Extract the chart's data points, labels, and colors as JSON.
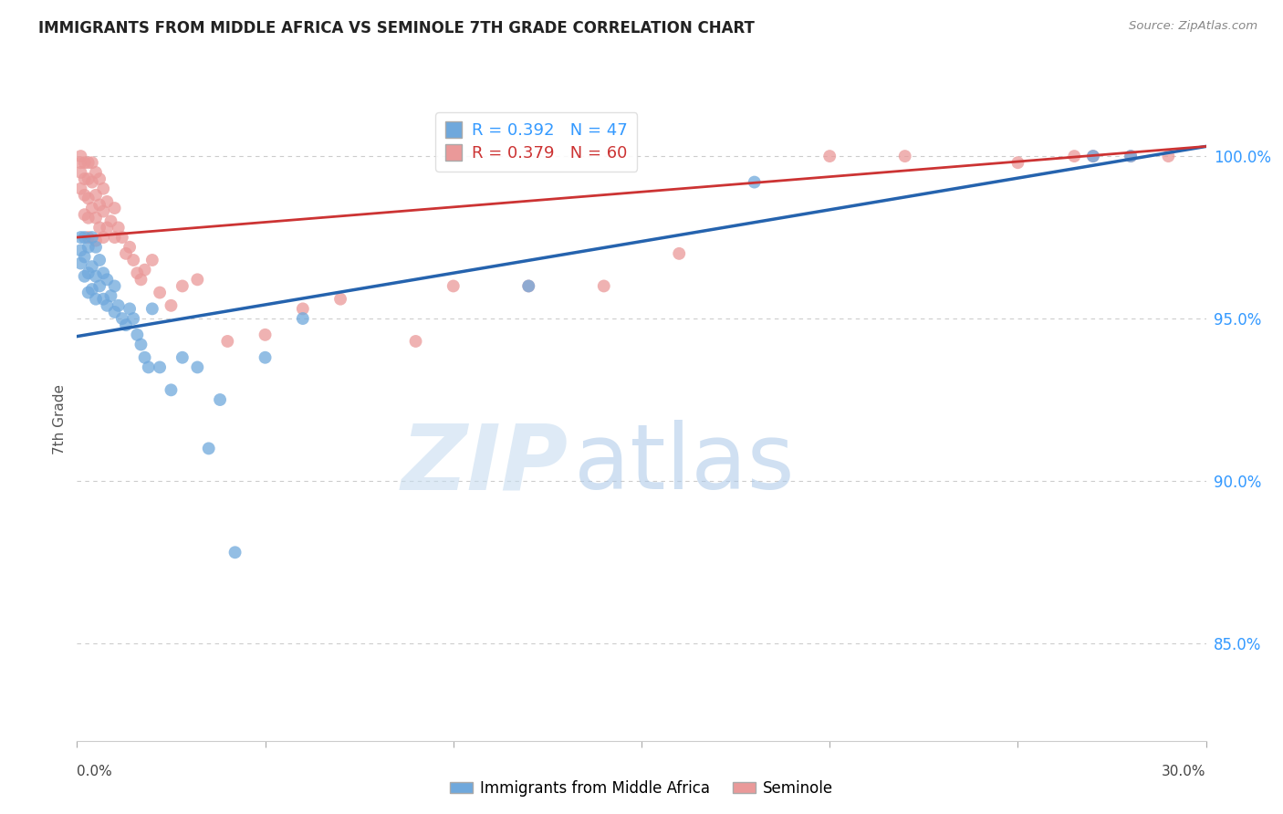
{
  "title": "IMMIGRANTS FROM MIDDLE AFRICA VS SEMINOLE 7TH GRADE CORRELATION CHART",
  "source": "Source: ZipAtlas.com",
  "ylabel": "7th Grade",
  "yaxis_labels": [
    "100.0%",
    "95.0%",
    "90.0%",
    "85.0%"
  ],
  "yaxis_values": [
    1.0,
    0.95,
    0.9,
    0.85
  ],
  "xmin": 0.0,
  "xmax": 0.3,
  "ymin": 0.82,
  "ymax": 1.018,
  "blue_color": "#6fa8dc",
  "pink_color": "#ea9999",
  "blue_line_color": "#2563ae",
  "pink_line_color": "#cc3333",
  "blue_line_x0": 0.0,
  "blue_line_y0": 0.9445,
  "blue_line_x1": 0.3,
  "blue_line_y1": 1.003,
  "pink_line_x0": 0.0,
  "pink_line_y0": 0.975,
  "pink_line_x1": 0.3,
  "pink_line_y1": 1.003,
  "blue_scatter_x": [
    0.001,
    0.001,
    0.001,
    0.002,
    0.002,
    0.002,
    0.003,
    0.003,
    0.003,
    0.004,
    0.004,
    0.004,
    0.005,
    0.005,
    0.005,
    0.006,
    0.006,
    0.007,
    0.007,
    0.008,
    0.008,
    0.009,
    0.01,
    0.01,
    0.011,
    0.012,
    0.013,
    0.014,
    0.015,
    0.016,
    0.017,
    0.018,
    0.019,
    0.02,
    0.022,
    0.025,
    0.028,
    0.032,
    0.035,
    0.038,
    0.042,
    0.05,
    0.06,
    0.12,
    0.18,
    0.27,
    0.28
  ],
  "blue_scatter_y": [
    0.975,
    0.971,
    0.967,
    0.975,
    0.969,
    0.963,
    0.972,
    0.964,
    0.958,
    0.975,
    0.966,
    0.959,
    0.972,
    0.963,
    0.956,
    0.968,
    0.96,
    0.964,
    0.956,
    0.962,
    0.954,
    0.957,
    0.96,
    0.952,
    0.954,
    0.95,
    0.948,
    0.953,
    0.95,
    0.945,
    0.942,
    0.938,
    0.935,
    0.953,
    0.935,
    0.928,
    0.938,
    0.935,
    0.91,
    0.925,
    0.878,
    0.938,
    0.95,
    0.96,
    0.992,
    1.0,
    1.0
  ],
  "pink_scatter_x": [
    0.001,
    0.001,
    0.001,
    0.001,
    0.002,
    0.002,
    0.002,
    0.002,
    0.003,
    0.003,
    0.003,
    0.003,
    0.003,
    0.004,
    0.004,
    0.004,
    0.005,
    0.005,
    0.005,
    0.005,
    0.006,
    0.006,
    0.006,
    0.007,
    0.007,
    0.007,
    0.008,
    0.008,
    0.009,
    0.01,
    0.01,
    0.011,
    0.012,
    0.013,
    0.014,
    0.015,
    0.016,
    0.017,
    0.018,
    0.02,
    0.022,
    0.025,
    0.028,
    0.032,
    0.04,
    0.05,
    0.06,
    0.07,
    0.09,
    0.1,
    0.12,
    0.14,
    0.16,
    0.2,
    0.22,
    0.25,
    0.265,
    0.27,
    0.28,
    0.29
  ],
  "pink_scatter_y": [
    1.0,
    0.998,
    0.995,
    0.99,
    0.998,
    0.993,
    0.988,
    0.982,
    0.998,
    0.993,
    0.987,
    0.981,
    0.975,
    0.998,
    0.992,
    0.984,
    0.995,
    0.988,
    0.981,
    0.974,
    0.993,
    0.985,
    0.978,
    0.99,
    0.983,
    0.975,
    0.986,
    0.978,
    0.98,
    0.984,
    0.975,
    0.978,
    0.975,
    0.97,
    0.972,
    0.968,
    0.964,
    0.962,
    0.965,
    0.968,
    0.958,
    0.954,
    0.96,
    0.962,
    0.943,
    0.945,
    0.953,
    0.956,
    0.943,
    0.96,
    0.96,
    0.96,
    0.97,
    1.0,
    1.0,
    0.998,
    1.0,
    1.0,
    1.0,
    1.0
  ],
  "watermark_zip": "ZIP",
  "watermark_atlas": "atlas",
  "background_color": "#ffffff",
  "grid_color": "#cccccc"
}
